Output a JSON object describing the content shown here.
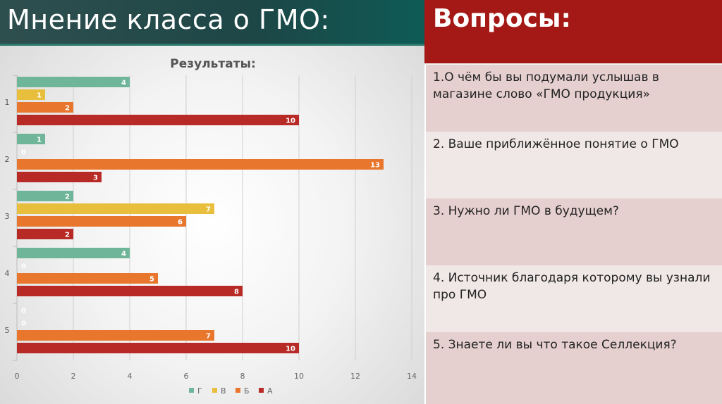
{
  "slide_title": "Мнение класса о ГМО:",
  "questions_panel": {
    "heading": "Вопросы:",
    "items": [
      "1.О чём бы вы подумали услышав в магазине слово «ГМО продукция»",
      "2. Ваше приближённое понятие о ГМО",
      "3. Нужно ли ГМО в будущем?",
      "4. Источник благодаря которому вы узнали про ГМО",
      "5. Знаете ли вы что такое Селлекция?"
    ]
  },
  "chart_data": {
    "type": "bar",
    "orientation": "horizontal",
    "title": "Результаты:",
    "categories": [
      "1",
      "2",
      "3",
      "4",
      "5"
    ],
    "series": [
      {
        "name": "Г",
        "color": "#6fb59a",
        "values": [
          4,
          1,
          2,
          4,
          0
        ]
      },
      {
        "name": "В",
        "color": "#e8bf3c",
        "values": [
          1,
          0,
          7,
          0,
          0
        ]
      },
      {
        "name": "Б",
        "color": "#e8762c",
        "values": [
          2,
          13,
          6,
          5,
          7
        ]
      },
      {
        "name": "А",
        "color": "#b82a26",
        "values": [
          10,
          3,
          2,
          8,
          10
        ]
      }
    ],
    "x_ticks": [
      0,
      2,
      4,
      6,
      8,
      10,
      12,
      14
    ],
    "xlim": [
      0,
      14
    ],
    "grid": true,
    "legend_position": "bottom",
    "data_labels": true
  }
}
